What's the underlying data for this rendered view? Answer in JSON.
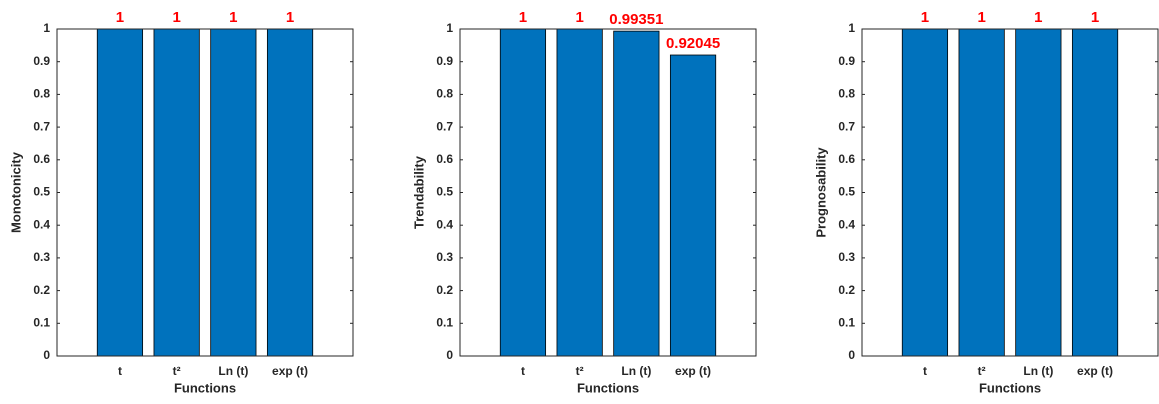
{
  "chart_data": [
    {
      "type": "bar",
      "categories": [
        "t",
        "t²",
        "Ln (t)",
        "exp (t)"
      ],
      "values": [
        1,
        1,
        1,
        1
      ],
      "color": "#0072bd",
      "value_label_color": "#ff0000",
      "ylabel": "Monotonicity",
      "xlabel": "Functions",
      "ylim": [
        0,
        1
      ],
      "yticks": [
        0,
        0.1,
        0.2,
        0.3,
        0.4,
        0.5,
        0.6,
        0.7,
        0.8,
        0.9,
        1
      ]
    },
    {
      "type": "bar",
      "categories": [
        "t",
        "t²",
        "Ln (t)",
        "exp (t)"
      ],
      "values": [
        1,
        1,
        0.99351,
        0.92045
      ],
      "color": "#0072bd",
      "value_label_color": "#ff0000",
      "ylabel": "Trendability",
      "xlabel": "Functions",
      "ylim": [
        0,
        1
      ],
      "yticks": [
        0,
        0.1,
        0.2,
        0.3,
        0.4,
        0.5,
        0.6,
        0.7,
        0.8,
        0.9,
        1
      ]
    },
    {
      "type": "bar",
      "categories": [
        "t",
        "t²",
        "Ln (t)",
        "exp (t)"
      ],
      "values": [
        1,
        1,
        1,
        1
      ],
      "color": "#0072bd",
      "value_label_color": "#ff0000",
      "ylabel": "Prognosability",
      "xlabel": "Functions",
      "ylim": [
        0,
        1
      ],
      "yticks": [
        0,
        0.1,
        0.2,
        0.3,
        0.4,
        0.5,
        0.6,
        0.7,
        0.8,
        0.9,
        1
      ]
    }
  ]
}
